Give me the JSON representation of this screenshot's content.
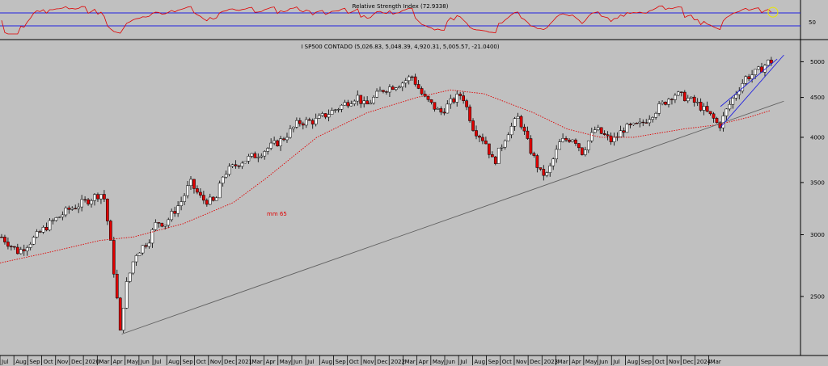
{
  "rsi_panel": {
    "title": "Relative Strength Index (72.9338)",
    "ytick_label": "50",
    "upper_band": 70,
    "lower_band": 30,
    "colors": {
      "line": "#e00000",
      "bands": "#2020e0",
      "marker": "#e8e800"
    }
  },
  "chart_data": {
    "type": "candlestick",
    "title": "I SP500 CONTADO (5,026.83, 5,048.39, 4,920.31, 5,005.57, -21.0400)",
    "scale": "log",
    "ylim": [
      2100,
      5300
    ],
    "yticks": [
      2500,
      3000,
      3500,
      4000,
      4500,
      5000
    ],
    "x_month_labels": [
      "Jul",
      "Aug",
      "Sep",
      "Oct",
      "Nov",
      "Dec",
      "2020",
      "Mar",
      "Apr",
      "May",
      "Jun",
      "Jul",
      "Aug",
      "Sep",
      "Oct",
      "Nov",
      "Dec",
      "2021",
      "Mar",
      "Apr",
      "May",
      "Jun",
      "Jul",
      "Aug",
      "Sep",
      "Oct",
      "Nov",
      "Dec",
      "2022",
      "Mar",
      "Apr",
      "May",
      "Jun",
      "Jul",
      "Aug",
      "Sep",
      "Oct",
      "Nov",
      "Dec",
      "2023",
      "Mar",
      "Apr",
      "May",
      "Jun",
      "Jul",
      "Aug",
      "Sep",
      "Oct",
      "Nov",
      "Dec",
      "2024",
      "Mar"
    ],
    "price_path": [
      [
        2019.52,
        2980
      ],
      [
        2019.58,
        2900
      ],
      [
        2019.62,
        2850
      ],
      [
        2019.7,
        2950
      ],
      [
        2019.8,
        3090
      ],
      [
        2019.92,
        3230
      ],
      [
        2020.0,
        3290
      ],
      [
        2020.1,
        3380
      ],
      [
        2020.13,
        3390
      ],
      [
        2020.17,
        2960
      ],
      [
        2020.21,
        2500
      ],
      [
        2020.23,
        2237
      ],
      [
        2020.26,
        2550
      ],
      [
        2020.32,
        2830
      ],
      [
        2020.4,
        2950
      ],
      [
        2020.45,
        3120
      ],
      [
        2020.5,
        3100
      ],
      [
        2020.6,
        3320
      ],
      [
        2020.65,
        3500
      ],
      [
        2020.72,
        3330
      ],
      [
        2020.8,
        3300
      ],
      [
        2020.85,
        3590
      ],
      [
        2020.95,
        3720
      ],
      [
        2021.05,
        3800
      ],
      [
        2021.2,
        3970
      ],
      [
        2021.3,
        4180
      ],
      [
        2021.4,
        4200
      ],
      [
        2021.55,
        4380
      ],
      [
        2021.65,
        4520
      ],
      [
        2021.7,
        4380
      ],
      [
        2021.8,
        4600
      ],
      [
        2021.92,
        4700
      ],
      [
        2021.98,
        4790
      ],
      [
        2022.05,
        4500
      ],
      [
        2022.15,
        4300
      ],
      [
        2022.22,
        4450
      ],
      [
        2022.28,
        4550
      ],
      [
        2022.35,
        4100
      ],
      [
        2022.42,
        3950
      ],
      [
        2022.47,
        3700
      ],
      [
        2022.55,
        4050
      ],
      [
        2022.62,
        4250
      ],
      [
        2022.68,
        3900
      ],
      [
        2022.75,
        3600
      ],
      [
        2022.79,
        3580
      ],
      [
        2022.87,
        3950
      ],
      [
        2022.95,
        4000
      ],
      [
        2023.0,
        3830
      ],
      [
        2023.08,
        4100
      ],
      [
        2023.18,
        3950
      ],
      [
        2023.25,
        4100
      ],
      [
        2023.35,
        4150
      ],
      [
        2023.45,
        4350
      ],
      [
        2023.55,
        4550
      ],
      [
        2023.62,
        4500
      ],
      [
        2023.7,
        4400
      ],
      [
        2023.8,
        4200
      ],
      [
        2023.82,
        4120
      ],
      [
        2023.87,
        4350
      ],
      [
        2023.92,
        4550
      ],
      [
        2023.98,
        4770
      ],
      [
        2024.05,
        4850
      ],
      [
        2024.12,
        5005
      ]
    ],
    "series": [
      {
        "name": "mm 65",
        "color": "#e00000",
        "style": "dotted",
        "values": [
          [
            2019.5,
            2760
          ],
          [
            2019.8,
            2850
          ],
          [
            2020.1,
            2950
          ],
          [
            2020.3,
            2980
          ],
          [
            2020.6,
            3100
          ],
          [
            2020.9,
            3300
          ],
          [
            2021.1,
            3550
          ],
          [
            2021.4,
            4000
          ],
          [
            2021.7,
            4300
          ],
          [
            2022.0,
            4500
          ],
          [
            2022.2,
            4600
          ],
          [
            2022.4,
            4550
          ],
          [
            2022.7,
            4300
          ],
          [
            2022.9,
            4100
          ],
          [
            2023.1,
            4000
          ],
          [
            2023.3,
            4000
          ],
          [
            2023.6,
            4100
          ],
          [
            2023.8,
            4150
          ],
          [
            2024.0,
            4250
          ],
          [
            2024.12,
            4330
          ]
        ]
      },
      {
        "name": "",
        "color": "#606060",
        "style": "solid",
        "values": [
          [
            2020.23,
            2237
          ],
          [
            2024.2,
            4450
          ]
        ]
      },
      {
        "name": "",
        "color": "#2020e0",
        "style": "solid",
        "values": [
          [
            2023.82,
            4120
          ],
          [
            2024.2,
            5100
          ]
        ]
      },
      {
        "name": "",
        "color": "#2020e0",
        "style": "solid",
        "values": [
          [
            2023.82,
            4380
          ],
          [
            2024.16,
            5040
          ]
        ]
      }
    ],
    "annotation": "mm 65",
    "colors": {
      "up": "#ffffff",
      "down": "#e00000",
      "wick": "#000000"
    }
  }
}
